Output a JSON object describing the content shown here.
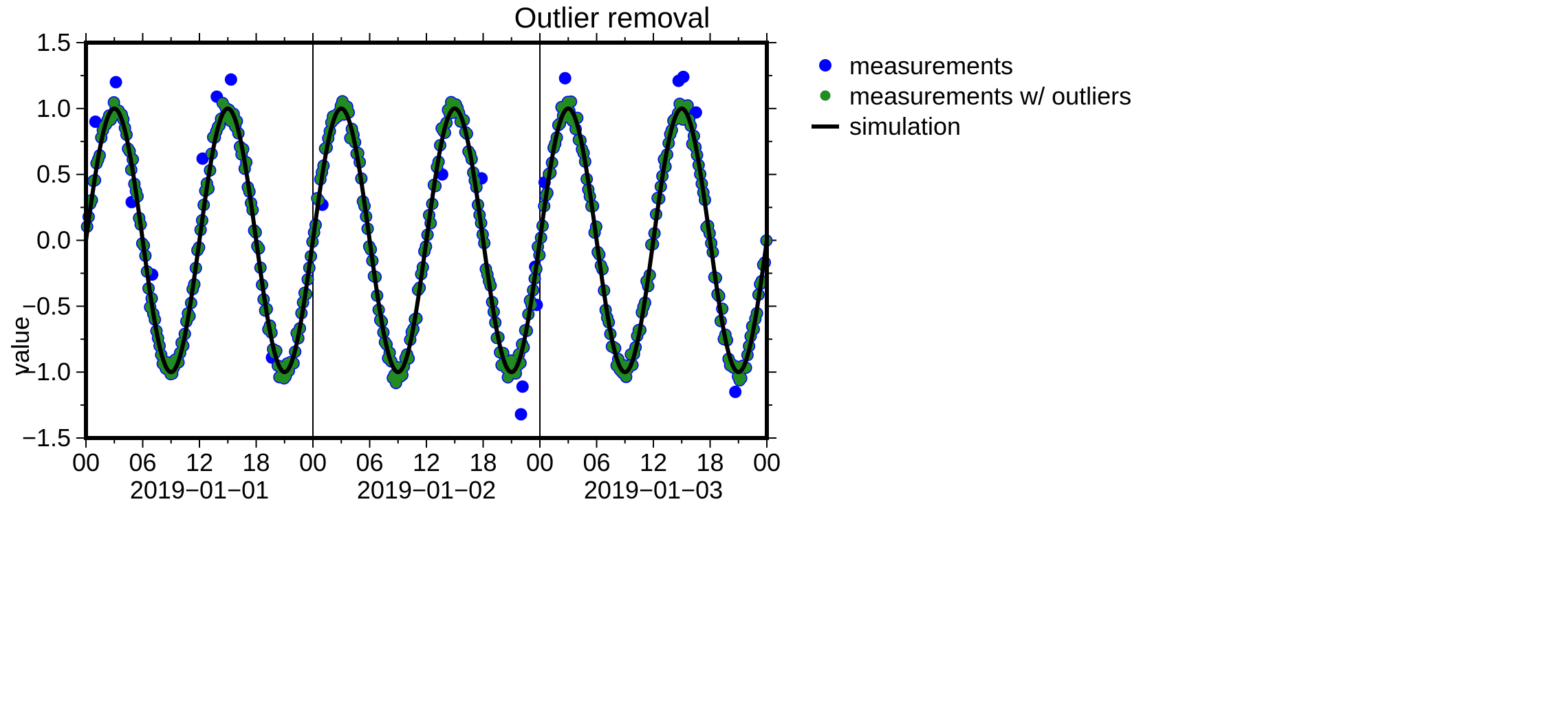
{
  "chart_data": {
    "type": "scatter",
    "title": "Outlier removal",
    "xlabel": "",
    "ylabel": "value",
    "x_start": "2019-01-01 00:00",
    "x_end": "2019-01-04 00:00",
    "ylim": [
      -1.5,
      1.5
    ],
    "yticks": [
      1.5,
      1.0,
      0.5,
      0.0,
      -0.5,
      -1.0,
      -1.5
    ],
    "ytick_labels": [
      "1.5",
      "1.0",
      "0.5",
      "0.0",
      "−0.5",
      "−1.0",
      "−1.5"
    ],
    "xtick_labels": [
      "00",
      "06",
      "12",
      "18",
      "00",
      "06",
      "12",
      "18",
      "00",
      "06",
      "12",
      "18",
      "00"
    ],
    "date_labels": [
      "2019−01−01",
      "2019−01−02",
      "2019−01−03"
    ],
    "day_separators": [
      "2019-01-02 00:00",
      "2019-01-03 00:00"
    ],
    "grid": false,
    "legend_position": "outside-right",
    "legend": [
      "measurements",
      "measurements w/ outliers",
      "simulation"
    ],
    "colors": {
      "measurements": "#0000ff",
      "outliers": "#228b22",
      "simulation": "#000000"
    },
    "simulation": {
      "function": "sin",
      "amplitude": 1.0,
      "period_hours": 12,
      "phase_hours": 0
    },
    "outliers": [
      {
        "x": "2019-01-01 01:00",
        "y": 0.9
      },
      {
        "x": "2019-01-01 03:10",
        "y": 1.2
      },
      {
        "x": "2019-01-01 04:50",
        "y": 0.29
      },
      {
        "x": "2019-01-01 07:00",
        "y": -0.26
      },
      {
        "x": "2019-01-01 12:20",
        "y": 0.62
      },
      {
        "x": "2019-01-01 13:50",
        "y": 1.09
      },
      {
        "x": "2019-01-01 15:20",
        "y": 1.22
      },
      {
        "x": "2019-01-01 19:40",
        "y": -0.89
      },
      {
        "x": "2019-01-02 01:00",
        "y": 0.27
      },
      {
        "x": "2019-01-02 13:40",
        "y": 0.5
      },
      {
        "x": "2019-01-02 17:50",
        "y": 0.47
      },
      {
        "x": "2019-01-02 22:10",
        "y": -1.11
      },
      {
        "x": "2019-01-02 22:00",
        "y": -1.32
      },
      {
        "x": "2019-01-02 23:30",
        "y": -0.2
      },
      {
        "x": "2019-01-02 23:40",
        "y": -0.49
      },
      {
        "x": "2019-01-03 00:30",
        "y": 0.44
      },
      {
        "x": "2019-01-03 02:40",
        "y": 1.23
      },
      {
        "x": "2019-01-03 14:40",
        "y": 1.21
      },
      {
        "x": "2019-01-03 15:10",
        "y": 1.24
      },
      {
        "x": "2019-01-03 16:30",
        "y": 0.97
      },
      {
        "x": "2019-01-03 20:40",
        "y": -1.15
      }
    ]
  }
}
